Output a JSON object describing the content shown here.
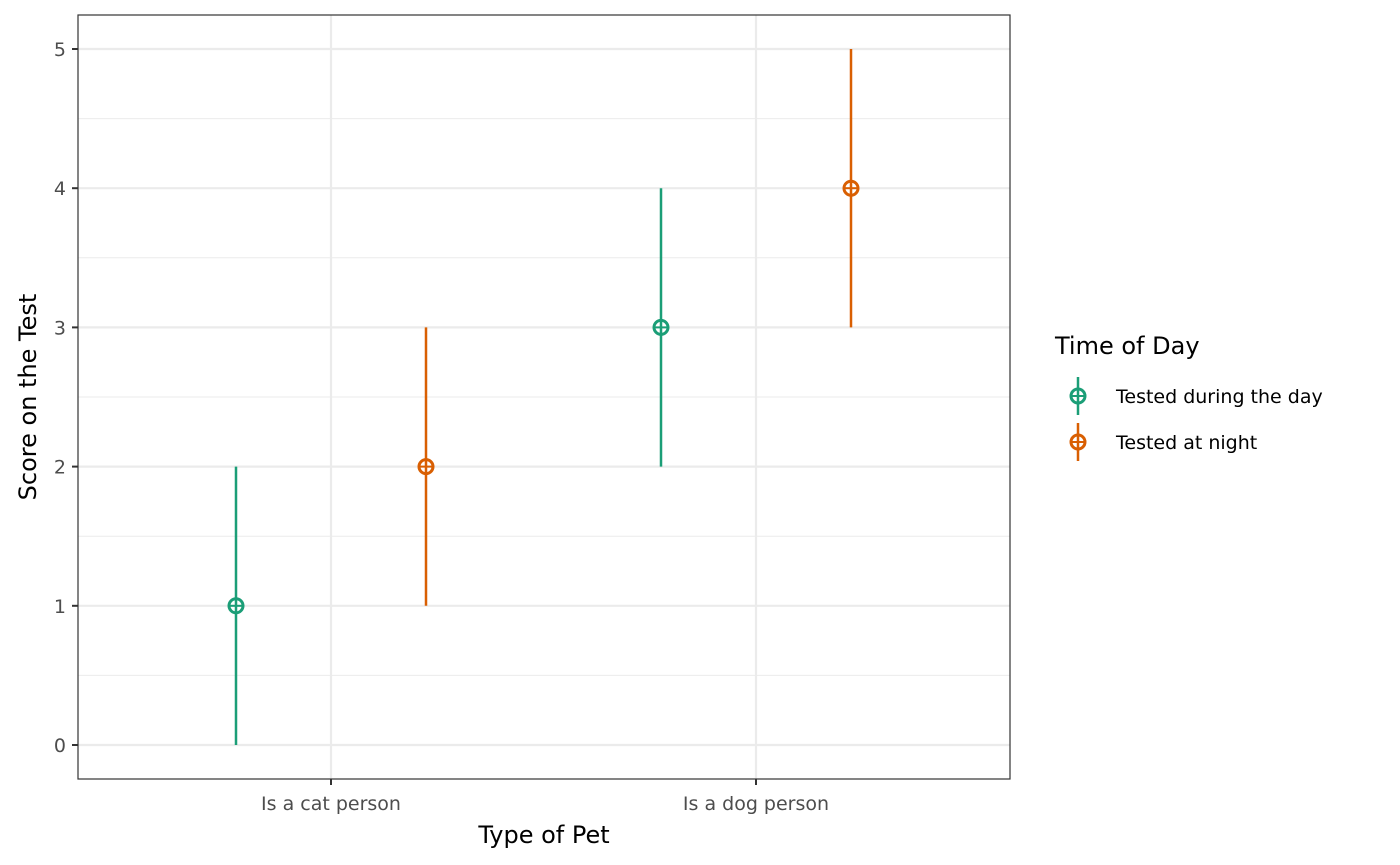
{
  "chart_data": {
    "type": "errorbar",
    "title": "",
    "xlabel": "Type of Pet",
    "ylabel": "Score on the Test",
    "categories": [
      "Is a cat person",
      "Is a dog person"
    ],
    "ylim": [
      -0.25,
      5.25
    ],
    "yticks": [
      0,
      1,
      2,
      3,
      4,
      5
    ],
    "ytick_labels": [
      "0",
      "1",
      "2",
      "3",
      "4",
      "5"
    ],
    "grid": true,
    "legend": {
      "title": "Time of Day",
      "position": "right"
    },
    "series": [
      {
        "name": "Tested during the day",
        "color": "#1b9e77",
        "values": [
          1,
          3
        ],
        "lower": [
          0,
          2
        ],
        "upper": [
          2,
          4
        ]
      },
      {
        "name": "Tested at night",
        "color": "#d95f02",
        "values": [
          2,
          4
        ],
        "lower": [
          1,
          3
        ],
        "upper": [
          3,
          5
        ]
      }
    ]
  }
}
